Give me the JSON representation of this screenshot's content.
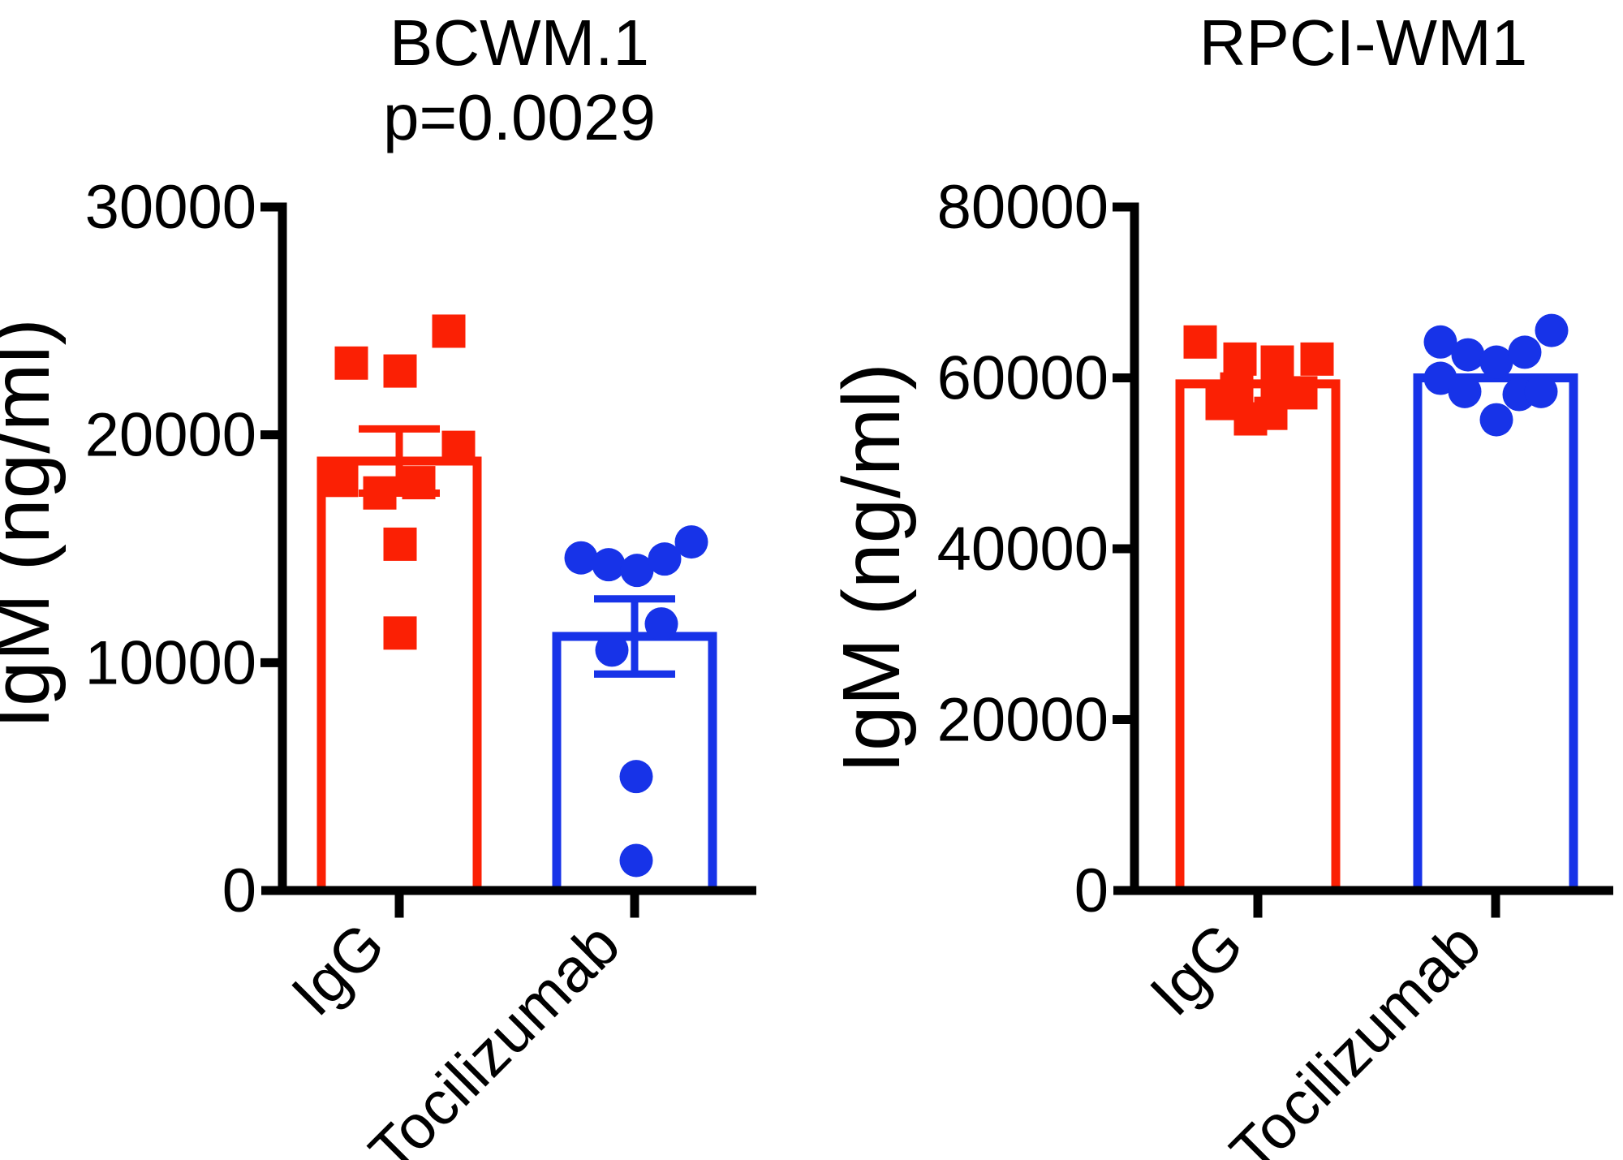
{
  "figure": {
    "background": "#ffffff",
    "axis_color": "#000000"
  },
  "chart_data": [
    {
      "id": "bcwm1",
      "type": "bar",
      "title": "BCWM.1",
      "subtitle": "p=0.0029",
      "ylabel": "IgM (ng/ml)",
      "ylim": [
        0,
        30000
      ],
      "yticks": [
        0,
        10000,
        20000,
        30000
      ],
      "categories": [
        "IgG",
        "Tocilizumab"
      ],
      "grid": false,
      "legend": "none",
      "series": [
        {
          "name": "IgG",
          "marker": "square",
          "color": "#FB2004",
          "mean": 18850,
          "sem": 1410,
          "points": [
            {
              "dx": -59,
              "value": 23150
            },
            {
              "dx": 1,
              "value": 22800
            },
            {
              "dx": 61,
              "value": 24550
            },
            {
              "dx": 73,
              "value": 19450
            },
            {
              "dx": -71,
              "value": 18000
            },
            {
              "dx": -24,
              "value": 17450
            },
            {
              "dx": 24,
              "value": 17900
            },
            {
              "dx": 1,
              "value": 15200
            },
            {
              "dx": 1,
              "value": 11300
            }
          ]
        },
        {
          "name": "Tocilizumab",
          "marker": "circle",
          "color": "#1733E8",
          "mean": 11150,
          "sem": 1650,
          "points": [
            {
              "dx": -66,
              "value": 14600
            },
            {
              "dx": -32,
              "value": 14300
            },
            {
              "dx": 3,
              "value": 14050
            },
            {
              "dx": 37,
              "value": 14550
            },
            {
              "dx": 70,
              "value": 15300
            },
            {
              "dx": 33,
              "value": 11700
            },
            {
              "dx": -28,
              "value": 10550
            },
            {
              "dx": 2,
              "value": 5000
            },
            {
              "dx": 2,
              "value": 1320
            }
          ]
        }
      ]
    },
    {
      "id": "rpci-wm1",
      "type": "bar",
      "title": "RPCI-WM1",
      "subtitle": "",
      "ylabel": "IgM (ng/ml)",
      "ylim": [
        0,
        80000
      ],
      "yticks": [
        0,
        20000,
        40000,
        60000,
        80000
      ],
      "categories": [
        "IgG",
        "Tocilizumab"
      ],
      "grid": false,
      "legend": "none",
      "series": [
        {
          "name": "IgG",
          "marker": "square",
          "color": "#FB2004",
          "mean": 59300,
          "sem": null,
          "points": [
            {
              "dx": -71,
              "value": 64200
            },
            {
              "dx": -22,
              "value": 62200
            },
            {
              "dx": 24,
              "value": 61850
            },
            {
              "dx": 73,
              "value": 62200
            },
            {
              "dx": -26,
              "value": 58700
            },
            {
              "dx": 24,
              "value": 58400
            },
            {
              "dx": -44,
              "value": 57000
            },
            {
              "dx": -9,
              "value": 55200
            },
            {
              "dx": 53,
              "value": 58250
            },
            {
              "dx": 16,
              "value": 55850
            }
          ]
        },
        {
          "name": "Tocilizumab",
          "marker": "circle",
          "color": "#1733E8",
          "mean": 60000,
          "sem": null,
          "points": [
            {
              "dx": -68,
              "value": 64200
            },
            {
              "dx": -34,
              "value": 62700
            },
            {
              "dx": 1,
              "value": 61850
            },
            {
              "dx": 36,
              "value": 63000
            },
            {
              "dx": 69,
              "value": 65550
            },
            {
              "dx": -68,
              "value": 59950
            },
            {
              "dx": -38,
              "value": 58400
            },
            {
              "dx": 29,
              "value": 58050
            },
            {
              "dx": 56,
              "value": 58400
            },
            {
              "dx": 1,
              "value": 55100
            }
          ]
        }
      ]
    }
  ]
}
